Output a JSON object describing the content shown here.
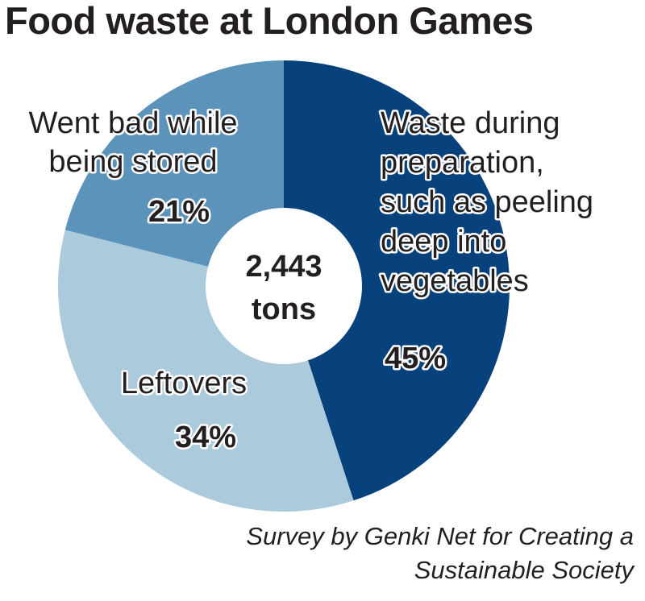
{
  "chart_data": {
    "type": "pie",
    "title": "Food waste at London Games",
    "center_label": [
      "2,443",
      "tons"
    ],
    "slices": [
      {
        "label": [
          "Waste during",
          "preparation,",
          "such as peeling",
          "deep into",
          "vegetables"
        ],
        "value": 45,
        "value_label": "45%",
        "color": "#08427c"
      },
      {
        "label": [
          "Leftovers"
        ],
        "value": 34,
        "value_label": "34%",
        "color": "#abcbdd"
      },
      {
        "label": [
          "Went bad while",
          "being stored"
        ],
        "value": 21,
        "value_label": "21%",
        "color": "#5b93bb"
      }
    ],
    "source": [
      "Survey by Genki Net for Creating a",
      "Sustainable Society"
    ]
  }
}
